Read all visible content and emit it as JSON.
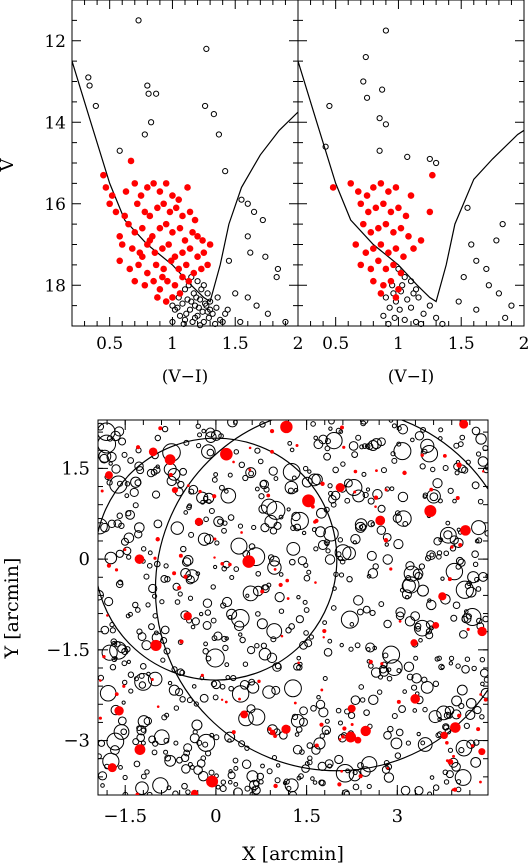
{
  "colors": {
    "member": "#ff0000",
    "field": "#000000",
    "axes": "#000000"
  },
  "chart_data": [
    {
      "type": "scatter",
      "panel": "cmd-left",
      "xlabel": "(V−I)",
      "ylabel": "V",
      "xlim": [
        0.2,
        2.0
      ],
      "ylim": [
        19.0,
        11.0
      ],
      "y_inverted": true,
      "xticks": [
        "0.5",
        "1",
        "1.5",
        "2"
      ],
      "yticks": [
        "12",
        "14",
        "16",
        "18"
      ],
      "series": [
        {
          "style": "open-black",
          "points": [
            [
              0.73,
              11.5
            ],
            [
              1.27,
              12.2
            ],
            [
              0.33,
              12.9
            ],
            [
              0.34,
              13.1
            ],
            [
              0.8,
              13.1
            ],
            [
              0.81,
              13.3
            ],
            [
              0.87,
              13.3
            ],
            [
              0.39,
              13.6
            ],
            [
              1.26,
              13.6
            ],
            [
              1.33,
              13.8
            ],
            [
              0.83,
              14.0
            ],
            [
              0.78,
              14.3
            ],
            [
              1.37,
              14.3
            ],
            [
              0.58,
              14.7
            ],
            [
              1.42,
              15.2
            ],
            [
              1.55,
              15.9
            ],
            [
              1.6,
              16.0
            ],
            [
              1.65,
              16.2
            ],
            [
              1.72,
              16.4
            ],
            [
              1.6,
              16.8
            ],
            [
              1.62,
              17.2
            ],
            [
              1.74,
              17.3
            ],
            [
              1.84,
              17.6
            ],
            [
              1.83,
              17.8
            ],
            [
              1.45,
              17.4
            ],
            [
              1.5,
              18.2
            ],
            [
              1.6,
              18.3
            ],
            [
              1.67,
              18.5
            ],
            [
              1.76,
              18.7
            ],
            [
              1.9,
              18.9
            ],
            [
              1.42,
              18.7
            ],
            [
              1.54,
              18.9
            ],
            [
              1.15,
              17.8
            ],
            [
              1.2,
              17.9
            ],
            [
              1.25,
              18.0
            ],
            [
              1.1,
              18.1
            ],
            [
              1.17,
              18.2
            ],
            [
              1.28,
              18.2
            ],
            [
              1.05,
              18.3
            ],
            [
              1.12,
              18.35
            ],
            [
              1.22,
              18.35
            ],
            [
              1.3,
              18.4
            ],
            [
              1.08,
              18.45
            ],
            [
              1.18,
              18.5
            ],
            [
              1.27,
              18.5
            ],
            [
              1.35,
              18.55
            ],
            [
              1.02,
              18.6
            ],
            [
              1.14,
              18.6
            ],
            [
              1.24,
              18.65
            ],
            [
              1.32,
              18.7
            ],
            [
              1.06,
              18.75
            ],
            [
              1.2,
              18.75
            ],
            [
              1.29,
              18.8
            ],
            [
              1.38,
              18.85
            ],
            [
              1.1,
              18.85
            ],
            [
              1.16,
              18.9
            ],
            [
              1.25,
              18.9
            ],
            [
              1.34,
              18.95
            ],
            [
              1.0,
              18.9
            ],
            [
              1.09,
              18.95
            ],
            [
              1.22,
              18.98
            ],
            [
              1.3,
              18.6
            ],
            [
              1.13,
              18.0
            ],
            [
              1.23,
              18.1
            ],
            [
              1.19,
              18.3
            ],
            [
              1.26,
              18.45
            ],
            [
              1.15,
              18.4
            ],
            [
              1.21,
              18.55
            ],
            [
              1.11,
              18.7
            ],
            [
              1.28,
              18.65
            ],
            [
              1.18,
              18.8
            ],
            [
              1.36,
              18.3
            ],
            [
              1.04,
              18.55
            ],
            [
              1.4,
              18.9
            ],
            [
              1.0,
              18.5
            ],
            [
              1.44,
              18.6
            ]
          ]
        },
        {
          "style": "filled-red",
          "points": [
            [
              0.67,
              14.95
            ],
            [
              0.45,
              15.3
            ],
            [
              0.47,
              15.6
            ],
            [
              0.52,
              15.8
            ],
            [
              0.5,
              16.0
            ],
            [
              0.63,
              15.7
            ],
            [
              0.7,
              15.5
            ],
            [
              0.75,
              15.8
            ],
            [
              0.8,
              15.6
            ],
            [
              0.85,
              15.5
            ],
            [
              0.9,
              15.7
            ],
            [
              0.95,
              15.5
            ],
            [
              1.0,
              15.8
            ],
            [
              1.05,
              15.9
            ],
            [
              1.12,
              15.6
            ],
            [
              0.72,
              16.0
            ],
            [
              0.78,
              16.2
            ],
            [
              0.82,
              16.3
            ],
            [
              0.88,
              16.1
            ],
            [
              0.93,
              16.0
            ],
            [
              0.98,
              16.2
            ],
            [
              1.03,
              16.1
            ],
            [
              1.08,
              16.3
            ],
            [
              1.14,
              16.2
            ],
            [
              0.65,
              16.5
            ],
            [
              0.7,
              16.7
            ],
            [
              0.76,
              16.6
            ],
            [
              0.84,
              16.8
            ],
            [
              0.9,
              16.6
            ],
            [
              0.95,
              16.5
            ],
            [
              1.0,
              16.7
            ],
            [
              1.06,
              16.6
            ],
            [
              1.1,
              16.9
            ],
            [
              1.16,
              16.7
            ],
            [
              1.2,
              16.8
            ],
            [
              0.6,
              17.0
            ],
            [
              0.68,
              17.1
            ],
            [
              0.74,
              17.2
            ],
            [
              0.8,
              17.0
            ],
            [
              0.86,
              17.2
            ],
            [
              0.92,
              17.1
            ],
            [
              0.97,
              17.0
            ],
            [
              1.02,
              17.3
            ],
            [
              1.08,
              17.2
            ],
            [
              1.14,
              17.1
            ],
            [
              1.2,
              17.3
            ],
            [
              1.25,
              17.2
            ],
            [
              0.58,
              17.4
            ],
            [
              0.66,
              17.6
            ],
            [
              0.73,
              17.5
            ],
            [
              0.8,
              17.7
            ],
            [
              0.87,
              17.5
            ],
            [
              0.93,
              17.6
            ],
            [
              0.99,
              17.4
            ],
            [
              1.05,
              17.6
            ],
            [
              1.11,
              17.5
            ],
            [
              1.17,
              17.7
            ],
            [
              1.23,
              17.6
            ],
            [
              1.28,
              17.5
            ],
            [
              0.7,
              17.9
            ],
            [
              0.78,
              18.0
            ],
            [
              0.85,
              17.9
            ],
            [
              0.9,
              18.1
            ],
            [
              0.96,
              17.9
            ],
            [
              1.02,
              18.0
            ],
            [
              1.08,
              17.8
            ],
            [
              1.13,
              17.9
            ],
            [
              0.88,
              18.3
            ],
            [
              0.95,
              18.4
            ],
            [
              1.0,
              18.3
            ],
            [
              1.06,
              18.2
            ],
            [
              0.55,
              16.2
            ],
            [
              0.62,
              16.3
            ],
            [
              0.58,
              16.8
            ],
            [
              0.82,
              16.9
            ],
            [
              1.18,
              16.4
            ],
            [
              1.24,
              16.9
            ],
            [
              1.3,
              17.0
            ],
            [
              0.92,
              17.8
            ],
            [
              0.76,
              17.3
            ]
          ]
        }
      ]
    },
    {
      "type": "scatter",
      "panel": "cmd-right",
      "xlabel": "(V−I)",
      "xlim": [
        0.2,
        2.0
      ],
      "ylim": [
        19.0,
        11.0
      ],
      "y_inverted": true,
      "xticks": [
        "0.5",
        "1",
        "1.5",
        "2"
      ],
      "series": [
        {
          "style": "open-black",
          "points": [
            [
              0.9,
              11.75
            ],
            [
              0.74,
              12.4
            ],
            [
              0.72,
              13.0
            ],
            [
              0.87,
              13.2
            ],
            [
              0.75,
              13.4
            ],
            [
              0.45,
              13.6
            ],
            [
              0.85,
              13.9
            ],
            [
              0.9,
              14.05
            ],
            [
              0.42,
              14.6
            ],
            [
              0.85,
              14.7
            ],
            [
              1.07,
              14.85
            ],
            [
              1.25,
              14.9
            ],
            [
              1.3,
              15.0
            ],
            [
              1.55,
              16.1
            ],
            [
              1.83,
              16.5
            ],
            [
              1.78,
              16.9
            ],
            [
              1.58,
              17.0
            ],
            [
              1.62,
              17.4
            ],
            [
              1.7,
              17.6
            ],
            [
              1.52,
              17.8
            ],
            [
              1.72,
              18.0
            ],
            [
              1.8,
              18.2
            ],
            [
              1.48,
              18.4
            ],
            [
              1.62,
              18.6
            ],
            [
              1.85,
              18.8
            ],
            [
              1.9,
              18.5
            ],
            [
              1.0,
              17.6
            ],
            [
              1.05,
              17.8
            ],
            [
              1.1,
              17.9
            ],
            [
              0.95,
              18.0
            ],
            [
              1.02,
              18.15
            ],
            [
              1.14,
              18.1
            ],
            [
              0.9,
              18.3
            ],
            [
              0.98,
              18.4
            ],
            [
              1.07,
              18.35
            ],
            [
              1.16,
              18.3
            ],
            [
              0.93,
              18.55
            ],
            [
              1.01,
              18.6
            ],
            [
              1.1,
              18.55
            ],
            [
              1.2,
              18.7
            ],
            [
              0.88,
              18.75
            ],
            [
              0.97,
              18.8
            ],
            [
              1.05,
              18.85
            ],
            [
              1.14,
              18.9
            ],
            [
              0.92,
              18.95
            ],
            [
              1.25,
              18.5
            ],
            [
              1.3,
              18.8
            ],
            [
              1.35,
              18.95
            ],
            [
              1.18,
              18.95
            ],
            [
              1.03,
              18.0
            ],
            [
              1.12,
              18.2
            ],
            [
              0.96,
              18.2
            ]
          ]
        },
        {
          "style": "filled-red",
          "points": [
            [
              0.48,
              15.6
            ],
            [
              0.62,
              15.5
            ],
            [
              0.68,
              15.7
            ],
            [
              0.75,
              15.8
            ],
            [
              0.8,
              15.6
            ],
            [
              0.86,
              15.5
            ],
            [
              0.92,
              15.7
            ],
            [
              0.98,
              15.6
            ],
            [
              1.1,
              15.8
            ],
            [
              1.27,
              15.3
            ],
            [
              0.7,
              16.0
            ],
            [
              0.76,
              16.2
            ],
            [
              0.82,
              16.1
            ],
            [
              0.88,
              16.0
            ],
            [
              0.94,
              16.2
            ],
            [
              1.0,
              16.1
            ],
            [
              1.06,
              16.3
            ],
            [
              1.25,
              16.2
            ],
            [
              0.72,
              16.5
            ],
            [
              0.78,
              16.7
            ],
            [
              0.84,
              16.6
            ],
            [
              0.9,
              16.5
            ],
            [
              0.96,
              16.7
            ],
            [
              1.02,
              16.6
            ],
            [
              1.08,
              16.8
            ],
            [
              1.18,
              16.9
            ],
            [
              0.66,
              17.0
            ],
            [
              0.74,
              17.2
            ],
            [
              0.8,
              17.1
            ],
            [
              0.86,
              17.0
            ],
            [
              0.92,
              17.2
            ],
            [
              0.98,
              17.1
            ],
            [
              1.04,
              17.3
            ],
            [
              1.12,
              17.1
            ],
            [
              0.7,
              17.5
            ],
            [
              0.78,
              17.6
            ],
            [
              0.84,
              17.4
            ],
            [
              0.9,
              17.6
            ],
            [
              0.96,
              17.5
            ],
            [
              1.02,
              17.7
            ],
            [
              0.8,
              17.9
            ],
            [
              0.88,
              18.0
            ],
            [
              0.94,
              17.9
            ],
            [
              1.0,
              18.1
            ],
            [
              0.86,
              18.2
            ],
            [
              0.98,
              18.3
            ]
          ]
        }
      ]
    },
    {
      "type": "scatter",
      "panel": "map",
      "xlabel": "X [arcmin]",
      "ylabel": "Y [arcmin]",
      "xlim": [
        -1.95,
        4.5
      ],
      "ylim": [
        -3.9,
        2.3
      ],
      "xticks": [
        "−1.5",
        "0",
        "1.5",
        "3"
      ],
      "yticks": [
        "1.5",
        "0",
        "−1.5",
        "−3"
      ],
      "circles": [
        {
          "center": [
            0,
            0
          ],
          "radius": 2.0
        },
        {
          "center": [
            2.0,
            -0.5
          ],
          "radius": 3.0
        }
      ]
    }
  ]
}
